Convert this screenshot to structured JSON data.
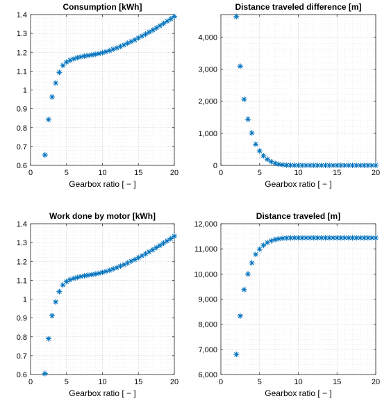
{
  "colors": {
    "marker": "#0072BD",
    "axis": "#262626"
  },
  "chart_data": [
    {
      "type": "scatter",
      "title": "Consumption [kWh]",
      "xlabel": "Gearbox ratio [ − ]",
      "ylabel": "",
      "xlim": [
        0,
        20
      ],
      "ylim": [
        0.6,
        1.4
      ],
      "xticks": [
        0,
        5,
        10,
        15,
        20
      ],
      "yticks": [
        0.6,
        0.7,
        0.8,
        0.9,
        1,
        1.1,
        1.2,
        1.3,
        1.4
      ],
      "ytick_labels": [
        "0.6",
        "0.7",
        "0.8",
        "0.9",
        "1",
        "1.1",
        "1.2",
        "1.3",
        "1.4"
      ],
      "marker": "*",
      "grid": true,
      "series": [
        {
          "x": [
            2,
            2.5,
            3,
            3.5,
            4,
            4.5,
            5,
            5.5,
            6,
            6.5,
            7,
            7.5,
            8,
            8.5,
            9,
            9.5,
            10,
            10.5,
            11,
            11.5,
            12,
            12.5,
            13,
            13.5,
            14,
            14.5,
            15,
            15.5,
            16,
            16.5,
            17,
            17.5,
            18,
            18.5,
            19,
            19.5,
            20
          ],
          "y": [
            0.655,
            0.843,
            0.963,
            1.037,
            1.093,
            1.13,
            1.148,
            1.158,
            1.165,
            1.171,
            1.176,
            1.18,
            1.183,
            1.186,
            1.189,
            1.193,
            1.198,
            1.203,
            1.209,
            1.216,
            1.223,
            1.231,
            1.239,
            1.248,
            1.257,
            1.266,
            1.276,
            1.286,
            1.296,
            1.307,
            1.318,
            1.329,
            1.341,
            1.353,
            1.365,
            1.377,
            1.39
          ]
        }
      ]
    },
    {
      "type": "scatter",
      "title": "Distance traveled difference [m]",
      "xlabel": "Gearbox ratio [ − ]",
      "ylabel": "",
      "xlim": [
        0,
        20
      ],
      "ylim": [
        0,
        4700
      ],
      "xticks": [
        0,
        5,
        10,
        15,
        20
      ],
      "yticks": [
        0,
        1000,
        2000,
        3000,
        4000
      ],
      "ytick_labels": [
        "0",
        "1,000",
        "2,000",
        "3,000",
        "4,000"
      ],
      "marker": "*",
      "grid": true,
      "series": [
        {
          "x": [
            2,
            2.5,
            3,
            3.5,
            4,
            4.5,
            5,
            5.5,
            6,
            6.5,
            7,
            7.5,
            8,
            8.5,
            9,
            9.5,
            10,
            10.5,
            11,
            11.5,
            12,
            12.5,
            13,
            13.5,
            14,
            14.5,
            15,
            15.5,
            16,
            16.5,
            17,
            17.5,
            18,
            18.5,
            19,
            19.5,
            20
          ],
          "y": [
            4640,
            3090,
            2060,
            1440,
            1010,
            660,
            450,
            300,
            190,
            115,
            65,
            35,
            18,
            8,
            4,
            2,
            1,
            0,
            0,
            0,
            0,
            0,
            0,
            0,
            0,
            0,
            0,
            0,
            0,
            0,
            0,
            0,
            0,
            0,
            0,
            0,
            0
          ]
        }
      ]
    },
    {
      "type": "scatter",
      "title": "Work done by motor [kWh]",
      "xlabel": "Gearbox ratio [ − ]",
      "ylabel": "",
      "xlim": [
        0,
        20
      ],
      "ylim": [
        0.6,
        1.4
      ],
      "xticks": [
        0,
        5,
        10,
        15,
        20
      ],
      "yticks": [
        0.6,
        0.7,
        0.8,
        0.9,
        1,
        1.1,
        1.2,
        1.3,
        1.4
      ],
      "ytick_labels": [
        "0.6",
        "0.7",
        "0.8",
        "0.9",
        "1",
        "1.1",
        "1.2",
        "1.3",
        "1.4"
      ],
      "marker": "*",
      "grid": true,
      "series": [
        {
          "x": [
            2,
            2.5,
            3,
            3.5,
            4,
            4.5,
            5,
            5.5,
            6,
            6.5,
            7,
            7.5,
            8,
            8.5,
            9,
            9.5,
            10,
            10.5,
            11,
            11.5,
            12,
            12.5,
            13,
            13.5,
            14,
            14.5,
            15,
            15.5,
            16,
            16.5,
            17,
            17.5,
            18,
            18.5,
            19,
            19.5,
            20
          ],
          "y": [
            0.605,
            0.79,
            0.912,
            0.985,
            1.04,
            1.075,
            1.093,
            1.103,
            1.11,
            1.115,
            1.12,
            1.124,
            1.127,
            1.13,
            1.133,
            1.137,
            1.142,
            1.147,
            1.153,
            1.16,
            1.167,
            1.175,
            1.183,
            1.192,
            1.201,
            1.21,
            1.22,
            1.23,
            1.24,
            1.251,
            1.262,
            1.273,
            1.285,
            1.297,
            1.309,
            1.321,
            1.334
          ]
        }
      ]
    },
    {
      "type": "scatter",
      "title": "Distance traveled [m]",
      "xlabel": "Gearbox ratio [ − ]",
      "ylabel": "",
      "xlim": [
        0,
        20
      ],
      "ylim": [
        6000,
        12000
      ],
      "xticks": [
        0,
        5,
        10,
        15,
        20
      ],
      "yticks": [
        6000,
        7000,
        8000,
        9000,
        10000,
        11000,
        12000
      ],
      "ytick_labels": [
        "6,000",
        "7,000",
        "8,000",
        "9,000",
        "10,000",
        "11,000",
        "12,000"
      ],
      "marker": "*",
      "grid": true,
      "series": [
        {
          "x": [
            2,
            2.5,
            3,
            3.5,
            4,
            4.5,
            5,
            5.5,
            6,
            6.5,
            7,
            7.5,
            8,
            8.5,
            9,
            9.5,
            10,
            10.5,
            11,
            11.5,
            12,
            12.5,
            13,
            13.5,
            14,
            14.5,
            15,
            15.5,
            16,
            16.5,
            17,
            17.5,
            18,
            18.5,
            19,
            19.5,
            20
          ],
          "y": [
            6800,
            8330,
            9380,
            10000,
            10440,
            10780,
            10990,
            11140,
            11250,
            11320,
            11370,
            11400,
            11420,
            11430,
            11435,
            11440,
            11440,
            11440,
            11440,
            11440,
            11440,
            11440,
            11440,
            11440,
            11440,
            11440,
            11440,
            11440,
            11440,
            11440,
            11440,
            11440,
            11440,
            11440,
            11440,
            11440,
            11440
          ]
        }
      ]
    }
  ]
}
